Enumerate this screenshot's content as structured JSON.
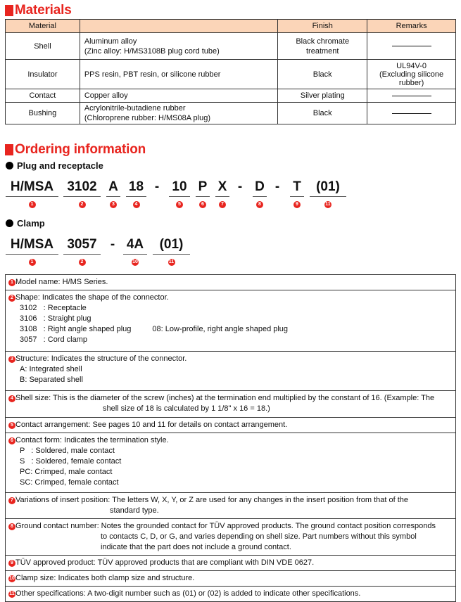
{
  "materials": {
    "title": "Materials",
    "headers": [
      "Material",
      "",
      "Finish",
      "Remarks"
    ],
    "rows": [
      {
        "material": "Shell",
        "desc": [
          "Aluminum alloy",
          "(Zinc alloy: H/MS3108B plug cord tube)"
        ],
        "finish": [
          "Black chromate",
          "treatment"
        ],
        "remarks": [
          "—"
        ]
      },
      {
        "material": "Insulator",
        "desc": [
          "PPS resin, PBT resin, or silicone rubber"
        ],
        "finish": [
          "Black"
        ],
        "remarks": [
          "UL94V-0",
          "(Excluding silicone",
          "rubber)"
        ]
      },
      {
        "material": "Contact",
        "desc": [
          "Copper alloy"
        ],
        "finish": [
          "Silver plating"
        ],
        "remarks": [
          "—"
        ]
      },
      {
        "material": "Bushing",
        "desc": [
          "Acrylonitrile-butadiene rubber",
          "(Chloroprene rubber: H/MS08A plug)"
        ],
        "finish": [
          "Black"
        ],
        "remarks": [
          "—"
        ]
      }
    ]
  },
  "ordering": {
    "title": "Ordering information",
    "plug": {
      "heading": "Plug and receptacle",
      "segments": [
        "H/MSA",
        "3102",
        "A",
        "18",
        "-",
        "10",
        "P",
        "X",
        "-",
        "D",
        "-",
        "T",
        "(01)"
      ],
      "numbers": [
        "1",
        "2",
        "3",
        "4",
        "",
        "5",
        "6",
        "7",
        "",
        "8",
        "",
        "9",
        "11"
      ]
    },
    "clamp": {
      "heading": "Clamp",
      "segments": [
        "H/MSA",
        "3057",
        "-",
        "4A",
        "(01)"
      ],
      "numbers": [
        "1",
        "2",
        "",
        "10",
        "11"
      ]
    }
  },
  "explanations": [
    {
      "num": "1",
      "lines": [
        "Model name: H/MS Series."
      ]
    },
    {
      "num": "2",
      "lines": [
        "Shape: Indicates the shape of the connector.",
        "3102   : Receptacle",
        "3106   : Straight plug",
        "3108   : Right angle shaped plug",
        "08: Low-profile, right angle shaped plug",
        "3057   : Cord clamp"
      ]
    },
    {
      "num": "3",
      "lines": [
        "Structure: Indicates the structure of the connector.",
        "A: Integrated shell",
        "B: Separated shell"
      ]
    },
    {
      "num": "4",
      "lines": [
        "Shell size: This is the diameter of the screw (inches) at the termination end multiplied by the constant of 16. (Example: The",
        "shell size of 18 is calculated by 1 1/8\" x 16 = 18.)"
      ]
    },
    {
      "num": "5",
      "lines": [
        "Contact arrangement: See pages 10 and 11 for details on contact arrangement."
      ]
    },
    {
      "num": "6",
      "lines": [
        "Contact form: Indicates the termination style.",
        "P   : Soldered, male contact",
        "S   : Soldered, female contact",
        "PC: Crimped, male contact",
        "SC: Crimped, female contact"
      ]
    },
    {
      "num": "7",
      "lines": [
        "Variations of insert position: The letters W, X, Y, or Z are used for any changes in the insert position from that of the",
        "standard type."
      ]
    },
    {
      "num": "8",
      "lines": [
        "Ground contact number: Notes the grounded contact for TÜV approved products. The ground contact position corresponds",
        "to contacts C, D, or G, and varies depending on shell size. Part numbers without this symbol",
        "indicate that the part does not include a ground contact."
      ]
    },
    {
      "num": "9",
      "lines": [
        "TÜV approved product: TÜV approved products that are compliant with DIN VDE 0627."
      ]
    },
    {
      "num": "10",
      "lines": [
        "Clamp size: Indicates both clamp size and structure."
      ]
    },
    {
      "num": "11",
      "lines": [
        "Other specifications: A two-digit number such as (01) or (02) is added to indicate other specifications."
      ]
    }
  ],
  "colors": {
    "accent": "#e8251f",
    "header_bg": "#fbd5b8"
  }
}
